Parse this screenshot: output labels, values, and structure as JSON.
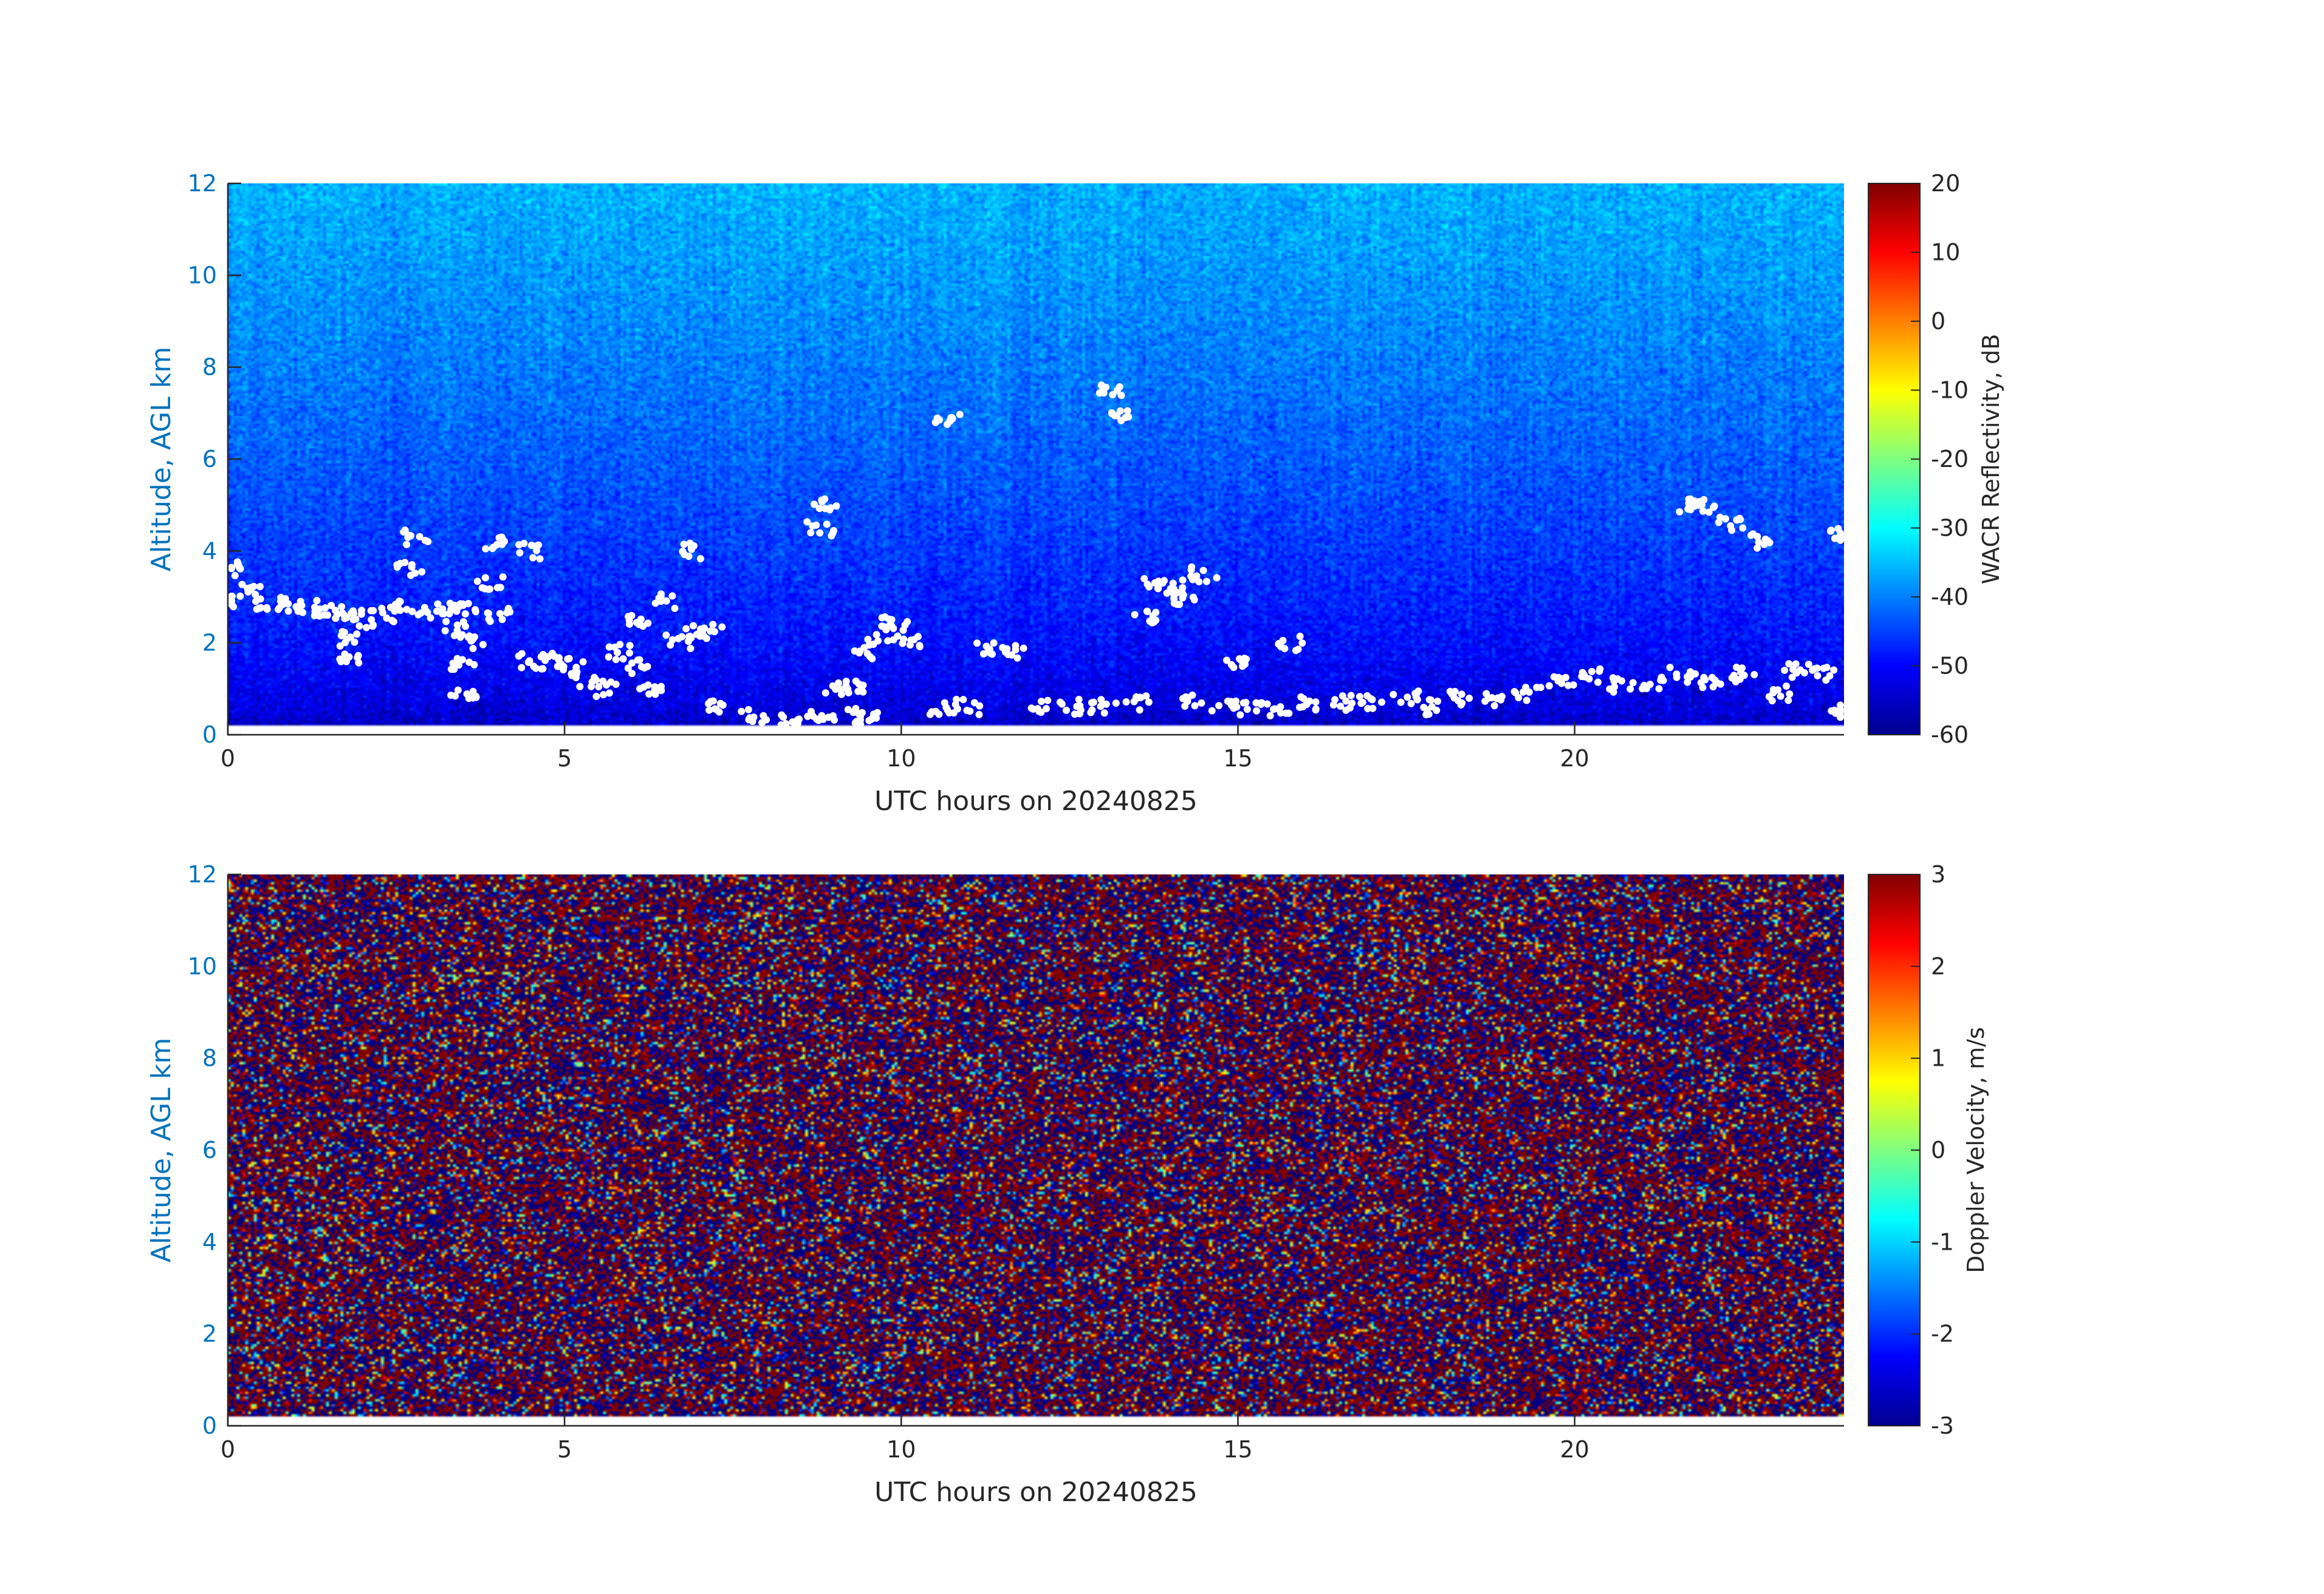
{
  "chart_data": [
    {
      "type": "heatmap",
      "title": "",
      "xlabel": "UTC hours on 20240825",
      "ylabel": "Altitude, AGL km",
      "xlim": [
        0,
        24
      ],
      "ylim": [
        0,
        12
      ],
      "xticks": [
        "0",
        "5",
        "10",
        "15",
        "20"
      ],
      "yticks": [
        "0",
        "2",
        "4",
        "6",
        "8",
        "10",
        "12"
      ],
      "colorbar": {
        "label": "WACR Reflectivity, dB",
        "range": [
          -60,
          20
        ],
        "ticks": [
          "-60",
          "-50",
          "-40",
          "-30",
          "-20",
          "-10",
          "0",
          "10",
          "20"
        ],
        "colormap": "jet"
      },
      "background_field": "noise, about -55 dB near the surface rising to about -35 dB at 12 km",
      "cloud_points": [
        [
          0,
          2.9
        ],
        [
          0.2,
          3.6
        ],
        [
          0.4,
          3.1
        ],
        [
          0.6,
          2.9
        ],
        [
          0.9,
          2.8
        ],
        [
          1.2,
          2.75
        ],
        [
          1.5,
          2.7
        ],
        [
          1.8,
          2.6
        ],
        [
          1.8,
          2.1
        ],
        [
          1.85,
          1.7
        ],
        [
          2.0,
          2.5
        ],
        [
          2.3,
          2.6
        ],
        [
          2.6,
          2.75
        ],
        [
          2.7,
          3.6
        ],
        [
          2.8,
          4.3
        ],
        [
          3.0,
          2.7
        ],
        [
          3.3,
          2.7
        ],
        [
          3.5,
          2.7
        ],
        [
          3.4,
          2.3
        ],
        [
          3.5,
          1.5
        ],
        [
          3.5,
          0.8
        ],
        [
          3.6,
          2.0
        ],
        [
          3.9,
          3.3
        ],
        [
          4.0,
          2.6
        ],
        [
          4.0,
          4.2
        ],
        [
          4.5,
          4.0
        ],
        [
          4.5,
          1.6
        ],
        [
          4.8,
          1.6
        ],
        [
          5.1,
          1.5
        ],
        [
          5.3,
          1.2
        ],
        [
          5.6,
          1.0
        ],
        [
          5.8,
          1.8
        ],
        [
          6.1,
          1.5
        ],
        [
          6.3,
          1.0
        ],
        [
          6.1,
          2.5
        ],
        [
          6.5,
          2.9
        ],
        [
          6.7,
          2.0
        ],
        [
          6.9,
          4.0
        ],
        [
          7.0,
          2.2
        ],
        [
          7.2,
          2.3
        ],
        [
          7.3,
          0.6
        ],
        [
          7.8,
          0.4
        ],
        [
          8.3,
          0.35
        ],
        [
          8.8,
          0.35
        ],
        [
          9.2,
          0.4
        ],
        [
          9.5,
          0.45
        ],
        [
          8.8,
          4.5
        ],
        [
          8.9,
          5.0
        ],
        [
          9.0,
          1.0
        ],
        [
          9.3,
          1.0
        ],
        [
          9.5,
          1.8
        ],
        [
          9.7,
          2.2
        ],
        [
          9.9,
          2.4
        ],
        [
          10.1,
          2.0
        ],
        [
          10.6,
          0.6
        ],
        [
          10.7,
          6.9
        ],
        [
          11.0,
          0.6
        ],
        [
          11.3,
          1.9
        ],
        [
          11.7,
          1.8
        ],
        [
          12.0,
          0.6
        ],
        [
          12.5,
          0.6
        ],
        [
          13.0,
          0.6
        ],
        [
          13.1,
          7.5
        ],
        [
          13.2,
          7.0
        ],
        [
          13.5,
          0.7
        ],
        [
          13.6,
          2.6
        ],
        [
          13.8,
          3.3
        ],
        [
          14.0,
          3.2
        ],
        [
          14.2,
          3.0
        ],
        [
          14.5,
          3.5
        ],
        [
          14.3,
          0.7
        ],
        [
          14.8,
          0.6
        ],
        [
          15.0,
          1.6
        ],
        [
          15.2,
          0.6
        ],
        [
          15.6,
          0.5
        ],
        [
          15.8,
          2.0
        ],
        [
          16.0,
          0.7
        ],
        [
          16.5,
          0.7
        ],
        [
          17.0,
          0.7
        ],
        [
          17.5,
          0.8
        ],
        [
          17.9,
          0.6
        ],
        [
          18.3,
          0.8
        ],
        [
          18.8,
          0.8
        ],
        [
          19.3,
          0.9
        ],
        [
          19.8,
          1.1
        ],
        [
          20.2,
          1.3
        ],
        [
          20.7,
          1.1
        ],
        [
          21.2,
          1.1
        ],
        [
          21.6,
          1.3
        ],
        [
          21.7,
          5.0
        ],
        [
          21.9,
          5.0
        ],
        [
          22.0,
          1.2
        ],
        [
          22.3,
          4.6
        ],
        [
          22.5,
          1.3
        ],
        [
          22.8,
          4.2
        ],
        [
          23.0,
          0.9
        ],
        [
          23.3,
          1.4
        ],
        [
          23.7,
          1.3
        ],
        [
          24.0,
          4.4
        ],
        [
          24.0,
          0.5
        ]
      ]
    },
    {
      "type": "heatmap",
      "title": "",
      "xlabel": "UTC hours on 20240825",
      "ylabel": "Altitude, AGL km",
      "xlim": [
        0,
        24
      ],
      "ylim": [
        0,
        12
      ],
      "xticks": [
        "0",
        "5",
        "10",
        "15",
        "20"
      ],
      "yticks": [
        "0",
        "2",
        "4",
        "6",
        "8",
        "10",
        "12"
      ],
      "colorbar": {
        "label": "Doppler Velocity, m/s",
        "range": [
          -3,
          3
        ],
        "ticks": [
          "-3",
          "-2",
          "-1",
          "0",
          "1",
          "2",
          "3"
        ],
        "colormap": "jet"
      },
      "background_field": "random noise spanning -3 to 3 m/s, dominated by saturated -3 and +3 values"
    }
  ],
  "colors": {
    "axis_text": "#262626",
    "y_axis_text": "#0072bd",
    "cloud_marker": "#ffffff"
  }
}
